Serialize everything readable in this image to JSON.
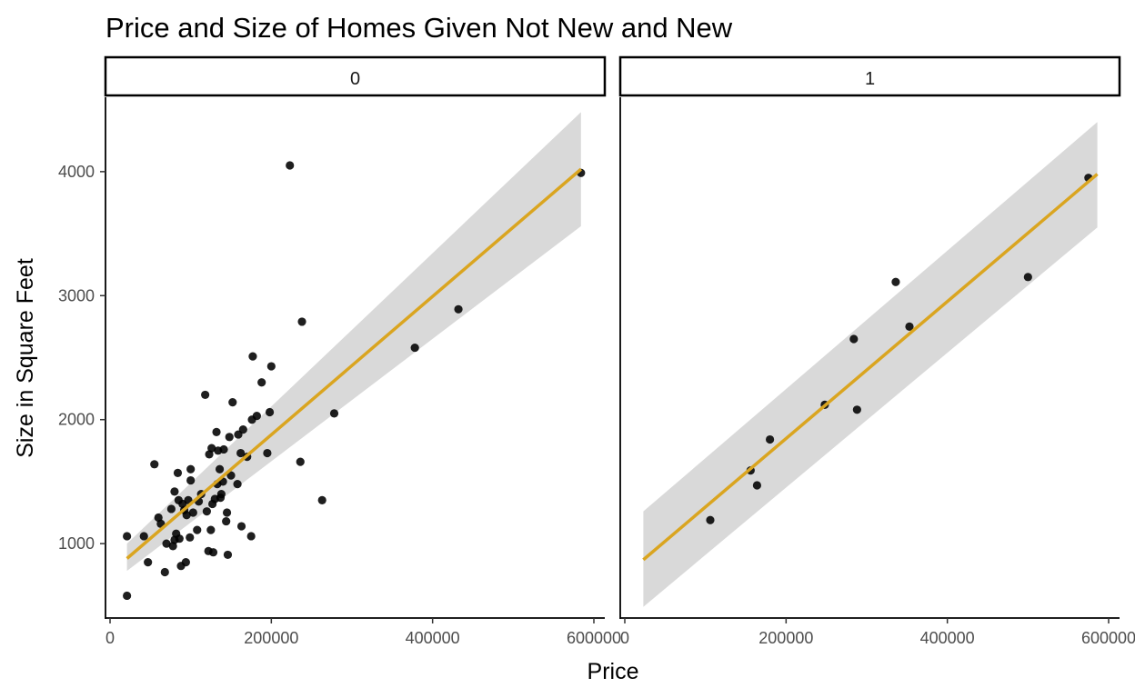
{
  "chart_data": {
    "type": "scatter",
    "title": "Price and Size of Homes Given Not New and New",
    "xlabel": "Price",
    "ylabel": "Size in Square Feet",
    "xlim": [
      0,
      600000
    ],
    "ylim": [
      400,
      4600
    ],
    "x_ticks": [
      "0",
      "200000",
      "400000",
      "600000"
    ],
    "y_ticks": [
      "1000",
      "2000",
      "3000",
      "4000"
    ],
    "grid": false,
    "smooth": {
      "method": "linear",
      "confidence_band": true
    },
    "colors": {
      "points": "#000000",
      "fit_line": "#DAA520",
      "band": "#D9D9D9",
      "axis": "#000000",
      "strip_border": "#000000"
    },
    "panels": [
      {
        "label": "0",
        "fit": {
          "x_range": [
            21000,
            584000
          ],
          "y_start": 880,
          "y_end": 4020,
          "band_low": [
            780,
            3560
          ],
          "band_high": [
            1000,
            4480
          ]
        },
        "points": [
          {
            "x": 21000,
            "y": 580
          },
          {
            "x": 21000,
            "y": 1060
          },
          {
            "x": 42000,
            "y": 1060
          },
          {
            "x": 47000,
            "y": 850
          },
          {
            "x": 55000,
            "y": 1640
          },
          {
            "x": 60000,
            "y": 1210
          },
          {
            "x": 63000,
            "y": 1160
          },
          {
            "x": 68000,
            "y": 770
          },
          {
            "x": 70000,
            "y": 1000
          },
          {
            "x": 76000,
            "y": 1280
          },
          {
            "x": 78000,
            "y": 980
          },
          {
            "x": 80000,
            "y": 1030
          },
          {
            "x": 80000,
            "y": 1420
          },
          {
            "x": 82000,
            "y": 1080
          },
          {
            "x": 84000,
            "y": 1570
          },
          {
            "x": 85000,
            "y": 1350
          },
          {
            "x": 86000,
            "y": 1040
          },
          {
            "x": 88000,
            "y": 820
          },
          {
            "x": 90000,
            "y": 1320
          },
          {
            "x": 92000,
            "y": 1270
          },
          {
            "x": 94000,
            "y": 850
          },
          {
            "x": 95000,
            "y": 1230
          },
          {
            "x": 97000,
            "y": 1350
          },
          {
            "x": 99000,
            "y": 1050
          },
          {
            "x": 100000,
            "y": 1510
          },
          {
            "x": 100000,
            "y": 1600
          },
          {
            "x": 103000,
            "y": 1250
          },
          {
            "x": 108000,
            "y": 1110
          },
          {
            "x": 110000,
            "y": 1340
          },
          {
            "x": 113000,
            "y": 1400
          },
          {
            "x": 118000,
            "y": 2200
          },
          {
            "x": 120000,
            "y": 1260
          },
          {
            "x": 122000,
            "y": 940
          },
          {
            "x": 123000,
            "y": 1720
          },
          {
            "x": 125000,
            "y": 1110
          },
          {
            "x": 126000,
            "y": 1770
          },
          {
            "x": 127000,
            "y": 1320
          },
          {
            "x": 128000,
            "y": 930
          },
          {
            "x": 130000,
            "y": 1360
          },
          {
            "x": 132000,
            "y": 1900
          },
          {
            "x": 133000,
            "y": 1480
          },
          {
            "x": 134000,
            "y": 1750
          },
          {
            "x": 136000,
            "y": 1600
          },
          {
            "x": 137000,
            "y": 1370
          },
          {
            "x": 138000,
            "y": 1400
          },
          {
            "x": 140000,
            "y": 1500
          },
          {
            "x": 141000,
            "y": 1760
          },
          {
            "x": 144000,
            "y": 1180
          },
          {
            "x": 145000,
            "y": 1250
          },
          {
            "x": 146000,
            "y": 910
          },
          {
            "x": 148000,
            "y": 1860
          },
          {
            "x": 150000,
            "y": 1550
          },
          {
            "x": 152000,
            "y": 2140
          },
          {
            "x": 158000,
            "y": 1480
          },
          {
            "x": 159000,
            "y": 1880
          },
          {
            "x": 162000,
            "y": 1730
          },
          {
            "x": 163000,
            "y": 1140
          },
          {
            "x": 165000,
            "y": 1920
          },
          {
            "x": 170000,
            "y": 1700
          },
          {
            "x": 175000,
            "y": 1060
          },
          {
            "x": 176000,
            "y": 2000
          },
          {
            "x": 177000,
            "y": 2510
          },
          {
            "x": 182000,
            "y": 2030
          },
          {
            "x": 188000,
            "y": 2300
          },
          {
            "x": 195000,
            "y": 1730
          },
          {
            "x": 198000,
            "y": 2060
          },
          {
            "x": 200000,
            "y": 2430
          },
          {
            "x": 223000,
            "y": 4050
          },
          {
            "x": 236000,
            "y": 1660
          },
          {
            "x": 238000,
            "y": 2790
          },
          {
            "x": 278000,
            "y": 2050
          },
          {
            "x": 263000,
            "y": 1350
          },
          {
            "x": 378000,
            "y": 2580
          },
          {
            "x": 432000,
            "y": 2890
          },
          {
            "x": 584000,
            "y": 3990
          }
        ]
      },
      {
        "label": "1",
        "fit": {
          "x_range": [
            23000,
            586000
          ],
          "y_start": 870,
          "y_end": 3980,
          "band_low": [
            490,
            3550
          ],
          "band_high": [
            1260,
            4400
          ]
        },
        "points": [
          {
            "x": 106000,
            "y": 1190
          },
          {
            "x": 156000,
            "y": 1590
          },
          {
            "x": 164000,
            "y": 1470
          },
          {
            "x": 180000,
            "y": 1840
          },
          {
            "x": 248000,
            "y": 2120
          },
          {
            "x": 284000,
            "y": 2650
          },
          {
            "x": 288000,
            "y": 2080
          },
          {
            "x": 336000,
            "y": 3110
          },
          {
            "x": 353000,
            "y": 2750
          },
          {
            "x": 500000,
            "y": 3150
          },
          {
            "x": 575000,
            "y": 3950
          }
        ]
      }
    ]
  }
}
